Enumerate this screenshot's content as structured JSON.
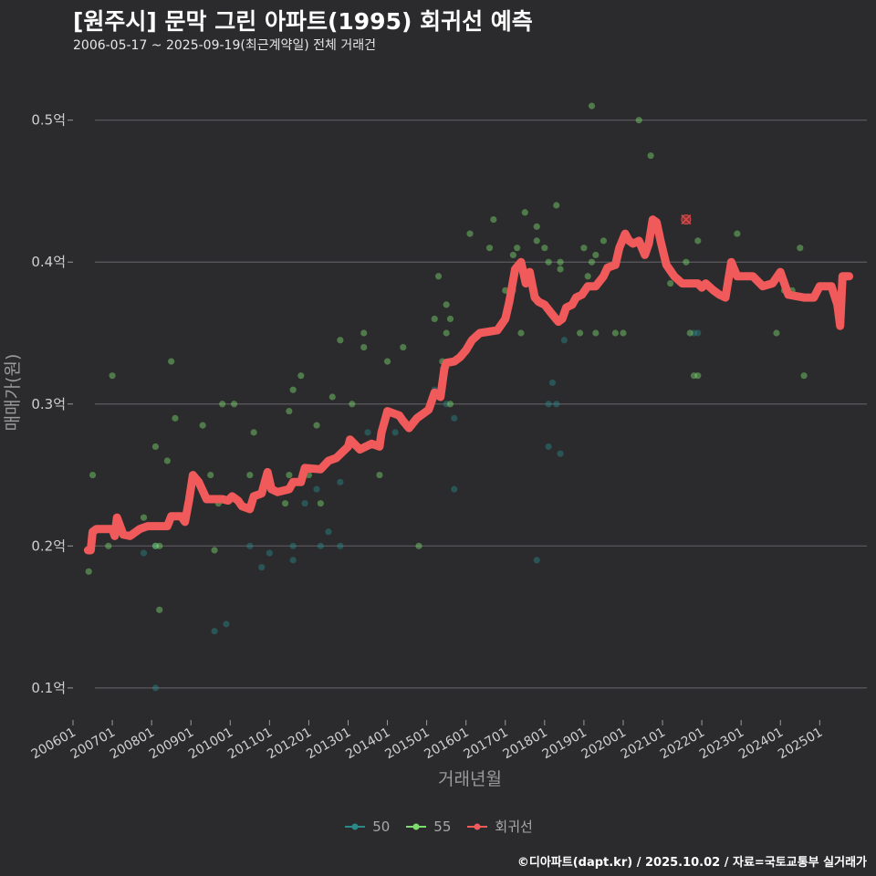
{
  "header": {
    "title": "[원주시] 문막 그린 아파트(1995) 회귀선 예측",
    "subtitle": "2006-05-17 ~ 2025-09-19(최근계약일) 전체 거래건"
  },
  "caption": "©디아파트(dapt.kr) / 2025.10.02 / 자료=국토교통부 실거래가",
  "colors": {
    "background": "#2b2a2c",
    "grid": "#5c5b5e",
    "series_50": "#2a8a8a",
    "series_55": "#7ddc6e",
    "regression": "#f05a5a"
  },
  "chart_data": {
    "type": "scatter",
    "title": "[원주시] 문막 그린 아파트(1995) 회귀선 예측",
    "subtitle": "2006-05-17 ~ 2025-09-19(최근계약일) 전체 거래건",
    "xlabel": "거래년월",
    "ylabel": "매매가(원)",
    "x_unit": "decimal year",
    "xlim": [
      2006.0,
      2026.2
    ],
    "ylim": [
      0.08,
      0.53
    ],
    "y_ticks": [
      0.1,
      0.2,
      0.3,
      0.4,
      0.5
    ],
    "y_tick_labels": [
      "0.1억",
      "0.2억",
      "0.3억",
      "0.4억",
      "0.5억"
    ],
    "x_ticks": [
      2006,
      2007,
      2008,
      2009,
      2010,
      2011,
      2012,
      2013,
      2014,
      2015,
      2016,
      2017,
      2018,
      2019,
      2020,
      2021,
      2022,
      2023,
      2024,
      2025
    ],
    "x_tick_labels": [
      "200601",
      "200701",
      "200801",
      "200901",
      "201001",
      "201101",
      "201201",
      "201301",
      "201401",
      "201501",
      "201601",
      "201701",
      "201801",
      "201901",
      "202001",
      "202101",
      "202201",
      "202301",
      "202401",
      "202501"
    ],
    "legend": [
      "50",
      "55",
      "회귀선"
    ],
    "legend_position": "bottom",
    "series": [
      {
        "name": "50",
        "points": [
          [
            2007.8,
            0.195
          ],
          [
            2008.1,
            0.2
          ],
          [
            2008.1,
            0.1
          ],
          [
            2009.6,
            0.14
          ],
          [
            2009.9,
            0.145
          ],
          [
            2010.5,
            0.2
          ],
          [
            2010.8,
            0.185
          ],
          [
            2011.0,
            0.195
          ],
          [
            2011.6,
            0.19
          ],
          [
            2011.6,
            0.2
          ],
          [
            2011.9,
            0.23
          ],
          [
            2012.2,
            0.24
          ],
          [
            2012.3,
            0.2
          ],
          [
            2012.5,
            0.21
          ],
          [
            2012.8,
            0.2
          ],
          [
            2012.8,
            0.245
          ],
          [
            2013.5,
            0.28
          ],
          [
            2014.2,
            0.28
          ],
          [
            2015.2,
            0.31
          ],
          [
            2015.5,
            0.3
          ],
          [
            2015.7,
            0.29
          ],
          [
            2015.7,
            0.24
          ],
          [
            2017.2,
            0.38
          ],
          [
            2017.8,
            0.19
          ],
          [
            2018.1,
            0.3
          ],
          [
            2018.1,
            0.27
          ],
          [
            2018.2,
            0.315
          ],
          [
            2018.3,
            0.3
          ],
          [
            2018.4,
            0.265
          ],
          [
            2018.5,
            0.345
          ],
          [
            2021.8,
            0.35
          ],
          [
            2021.9,
            0.35
          ]
        ]
      },
      {
        "name": "55",
        "points": [
          [
            2006.4,
            0.182
          ],
          [
            2006.5,
            0.25
          ],
          [
            2006.9,
            0.2
          ],
          [
            2007.0,
            0.32
          ],
          [
            2007.8,
            0.22
          ],
          [
            2008.1,
            0.27
          ],
          [
            2008.1,
            0.2
          ],
          [
            2008.2,
            0.2
          ],
          [
            2008.2,
            0.155
          ],
          [
            2008.4,
            0.26
          ],
          [
            2008.5,
            0.33
          ],
          [
            2008.6,
            0.29
          ],
          [
            2009.3,
            0.285
          ],
          [
            2009.5,
            0.25
          ],
          [
            2009.6,
            0.197
          ],
          [
            2009.7,
            0.23
          ],
          [
            2009.8,
            0.3
          ],
          [
            2009.9,
            0.232
          ],
          [
            2010.1,
            0.3
          ],
          [
            2010.5,
            0.25
          ],
          [
            2010.6,
            0.28
          ],
          [
            2011.4,
            0.23
          ],
          [
            2011.5,
            0.25
          ],
          [
            2011.5,
            0.295
          ],
          [
            2011.6,
            0.31
          ],
          [
            2011.8,
            0.32
          ],
          [
            2012.0,
            0.25
          ],
          [
            2012.2,
            0.285
          ],
          [
            2012.3,
            0.23
          ],
          [
            2012.6,
            0.305
          ],
          [
            2012.8,
            0.345
          ],
          [
            2013.1,
            0.3
          ],
          [
            2013.4,
            0.35
          ],
          [
            2013.4,
            0.34
          ],
          [
            2013.8,
            0.25
          ],
          [
            2014.0,
            0.33
          ],
          [
            2014.4,
            0.34
          ],
          [
            2014.8,
            0.2
          ],
          [
            2015.2,
            0.36
          ],
          [
            2015.3,
            0.39
          ],
          [
            2015.4,
            0.33
          ],
          [
            2015.5,
            0.37
          ],
          [
            2015.6,
            0.36
          ],
          [
            2015.5,
            0.35
          ],
          [
            2015.6,
            0.3
          ],
          [
            2016.1,
            0.42
          ],
          [
            2016.6,
            0.41
          ],
          [
            2016.7,
            0.43
          ],
          [
            2017.0,
            0.38
          ],
          [
            2017.2,
            0.405
          ],
          [
            2017.3,
            0.41
          ],
          [
            2017.4,
            0.35
          ],
          [
            2017.5,
            0.435
          ],
          [
            2017.8,
            0.415
          ],
          [
            2017.8,
            0.425
          ],
          [
            2018.0,
            0.41
          ],
          [
            2018.1,
            0.4
          ],
          [
            2018.3,
            0.44
          ],
          [
            2018.4,
            0.395
          ],
          [
            2018.4,
            0.4
          ],
          [
            2018.9,
            0.35
          ],
          [
            2019.0,
            0.41
          ],
          [
            2019.1,
            0.39
          ],
          [
            2019.2,
            0.4
          ],
          [
            2019.2,
            0.51
          ],
          [
            2019.3,
            0.35
          ],
          [
            2019.3,
            0.405
          ],
          [
            2019.5,
            0.415
          ],
          [
            2019.8,
            0.35
          ],
          [
            2020.0,
            0.35
          ],
          [
            2020.4,
            0.5
          ],
          [
            2020.7,
            0.475
          ],
          [
            2021.2,
            0.385
          ],
          [
            2021.6,
            0.4
          ],
          [
            2021.7,
            0.35
          ],
          [
            2021.8,
            0.32
          ],
          [
            2021.9,
            0.415
          ],
          [
            2021.9,
            0.32
          ],
          [
            2022.9,
            0.42
          ],
          [
            2023.9,
            0.35
          ],
          [
            2024.1,
            0.38
          ],
          [
            2024.3,
            0.38
          ],
          [
            2024.5,
            0.41
          ],
          [
            2024.6,
            0.32
          ]
        ]
      },
      {
        "name": "회귀선",
        "points": [
          [
            2006.38,
            0.197
          ],
          [
            2006.45,
            0.197
          ],
          [
            2006.5,
            0.21
          ],
          [
            2006.6,
            0.212
          ],
          [
            2007.0,
            0.212
          ],
          [
            2007.06,
            0.207
          ],
          [
            2007.12,
            0.22
          ],
          [
            2007.2,
            0.214
          ],
          [
            2007.28,
            0.208
          ],
          [
            2007.45,
            0.207
          ],
          [
            2007.7,
            0.212
          ],
          [
            2007.9,
            0.214
          ],
          [
            2008.4,
            0.214
          ],
          [
            2008.5,
            0.221
          ],
          [
            2008.75,
            0.221
          ],
          [
            2008.85,
            0.217
          ],
          [
            2008.95,
            0.232
          ],
          [
            2009.05,
            0.25
          ],
          [
            2009.2,
            0.245
          ],
          [
            2009.4,
            0.233
          ],
          [
            2009.8,
            0.233
          ],
          [
            2009.95,
            0.232
          ],
          [
            2010.05,
            0.235
          ],
          [
            2010.2,
            0.232
          ],
          [
            2010.3,
            0.228
          ],
          [
            2010.5,
            0.226
          ],
          [
            2010.6,
            0.235
          ],
          [
            2010.8,
            0.237
          ],
          [
            2010.95,
            0.252
          ],
          [
            2011.05,
            0.24
          ],
          [
            2011.2,
            0.238
          ],
          [
            2011.5,
            0.24
          ],
          [
            2011.6,
            0.245
          ],
          [
            2011.8,
            0.245
          ],
          [
            2011.9,
            0.255
          ],
          [
            2012.3,
            0.254
          ],
          [
            2012.5,
            0.26
          ],
          [
            2012.7,
            0.262
          ],
          [
            2013.0,
            0.27
          ],
          [
            2013.05,
            0.275
          ],
          [
            2013.3,
            0.268
          ],
          [
            2013.6,
            0.272
          ],
          [
            2013.8,
            0.27
          ],
          [
            2013.85,
            0.28
          ],
          [
            2014.0,
            0.295
          ],
          [
            2014.2,
            0.293
          ],
          [
            2014.3,
            0.292
          ],
          [
            2014.4,
            0.288
          ],
          [
            2014.55,
            0.283
          ],
          [
            2014.75,
            0.29
          ],
          [
            2015.05,
            0.296
          ],
          [
            2015.2,
            0.308
          ],
          [
            2015.35,
            0.305
          ],
          [
            2015.45,
            0.325
          ],
          [
            2015.5,
            0.329
          ],
          [
            2015.7,
            0.33
          ],
          [
            2015.85,
            0.333
          ],
          [
            2016.0,
            0.338
          ],
          [
            2016.15,
            0.345
          ],
          [
            2016.35,
            0.35
          ],
          [
            2016.8,
            0.352
          ],
          [
            2017.0,
            0.36
          ],
          [
            2017.1,
            0.372
          ],
          [
            2017.25,
            0.395
          ],
          [
            2017.4,
            0.4
          ],
          [
            2017.52,
            0.385
          ],
          [
            2017.62,
            0.393
          ],
          [
            2017.75,
            0.375
          ],
          [
            2017.85,
            0.372
          ],
          [
            2018.0,
            0.37
          ],
          [
            2018.2,
            0.363
          ],
          [
            2018.35,
            0.358
          ],
          [
            2018.45,
            0.36
          ],
          [
            2018.55,
            0.368
          ],
          [
            2018.7,
            0.37
          ],
          [
            2018.8,
            0.375
          ],
          [
            2018.95,
            0.377
          ],
          [
            2019.1,
            0.383
          ],
          [
            2019.3,
            0.383
          ],
          [
            2019.5,
            0.39
          ],
          [
            2019.6,
            0.396
          ],
          [
            2019.8,
            0.398
          ],
          [
            2019.9,
            0.41
          ],
          [
            2020.05,
            0.42
          ],
          [
            2020.15,
            0.415
          ],
          [
            2020.25,
            0.413
          ],
          [
            2020.4,
            0.415
          ],
          [
            2020.55,
            0.405
          ],
          [
            2020.65,
            0.413
          ],
          [
            2020.75,
            0.43
          ],
          [
            2020.85,
            0.428
          ],
          [
            2020.95,
            0.415
          ],
          [
            2021.1,
            0.398
          ],
          [
            2021.3,
            0.39
          ],
          [
            2021.5,
            0.385
          ],
          [
            2021.9,
            0.385
          ],
          [
            2022.0,
            0.382
          ],
          [
            2022.1,
            0.385
          ],
          [
            2022.3,
            0.38
          ],
          [
            2022.45,
            0.377
          ],
          [
            2022.6,
            0.375
          ],
          [
            2022.75,
            0.4
          ],
          [
            2022.9,
            0.39
          ],
          [
            2023.3,
            0.39
          ],
          [
            2023.55,
            0.383
          ],
          [
            2023.8,
            0.385
          ],
          [
            2024.0,
            0.393
          ],
          [
            2024.2,
            0.377
          ],
          [
            2024.6,
            0.375
          ],
          [
            2024.85,
            0.375
          ],
          [
            2025.0,
            0.383
          ],
          [
            2025.3,
            0.383
          ],
          [
            2025.45,
            0.37
          ],
          [
            2025.52,
            0.355
          ],
          [
            2025.58,
            0.39
          ],
          [
            2025.75,
            0.39
          ]
        ]
      }
    ],
    "highlight_point": [
      2021.6,
      0.43
    ]
  }
}
